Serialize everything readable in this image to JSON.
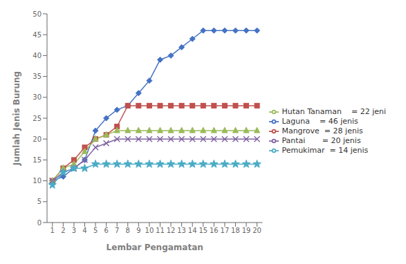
{
  "chart_data": {
    "type": "line",
    "xlabel": "Lembar Pengamatan",
    "ylabel": "Jumlah Jenis Burung",
    "x": [
      1,
      2,
      3,
      4,
      5,
      6,
      7,
      8,
      9,
      10,
      11,
      12,
      13,
      14,
      15,
      16,
      17,
      18,
      19,
      20
    ],
    "series": [
      {
        "name": "Laguna    = 46 jenis",
        "color": "#4472C4",
        "marker": "diamond",
        "values": [
          10,
          11,
          13,
          15,
          22,
          25,
          27,
          28,
          31,
          34,
          39,
          40,
          42,
          44,
          46,
          46,
          46,
          46,
          46,
          46
        ]
      },
      {
        "name": "Mangrove  = 28 jenis",
        "color": "#C0504D",
        "marker": "square",
        "values": [
          10,
          13,
          15,
          18,
          20,
          21,
          23,
          28,
          28,
          28,
          28,
          28,
          28,
          28,
          28,
          28,
          28,
          28,
          28,
          28
        ]
      },
      {
        "name": "Hutan Tanaman    = 22 jeni",
        "color": "#9BBB59",
        "marker": "triangle",
        "values": [
          10,
          13,
          14,
          17,
          20,
          21,
          22,
          22,
          22,
          22,
          22,
          22,
          22,
          22,
          22,
          22,
          22,
          22,
          22,
          22
        ]
      },
      {
        "name": "Pantai       = 20 jenis",
        "color": "#8064A2",
        "marker": "x",
        "values": [
          10,
          12,
          13,
          15,
          18,
          19,
          20,
          20,
          20,
          20,
          20,
          20,
          20,
          20,
          20,
          20,
          20,
          20,
          20,
          20
        ]
      },
      {
        "name": "Pemukimar  = 14 jenis",
        "color": "#4BACC6",
        "marker": "star",
        "values": [
          9,
          12,
          13,
          13,
          14,
          14,
          14,
          14,
          14,
          14,
          14,
          14,
          14,
          14,
          14,
          14,
          14,
          14,
          14,
          14
        ]
      }
    ],
    "xlim": [
      0.5,
      20.5
    ],
    "xticks": [
      1,
      2,
      3,
      4,
      5,
      6,
      7,
      8,
      9,
      10,
      11,
      12,
      13,
      14,
      15,
      16,
      17,
      18,
      19,
      20
    ],
    "ylim": [
      0,
      50
    ],
    "yticks": [
      0,
      5,
      10,
      15,
      20,
      25,
      30,
      35,
      40,
      45,
      50
    ],
    "grid": false,
    "legend": "right"
  }
}
